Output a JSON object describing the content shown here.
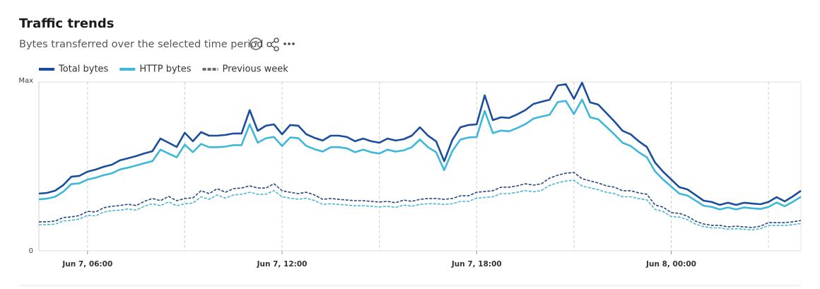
{
  "header": {
    "title": "Traffic trends",
    "subtitle": "Bytes transferred over the selected time period"
  },
  "chart_data": {
    "type": "line",
    "x": [
      4.5,
      4.75,
      5,
      5.25,
      5.5,
      5.75,
      6,
      6.25,
      6.5,
      6.75,
      7,
      7.25,
      7.5,
      7.75,
      8,
      8.25,
      8.5,
      8.75,
      9,
      9.25,
      9.5,
      9.75,
      10,
      10.25,
      10.5,
      10.75,
      11,
      11.25,
      11.5,
      11.75,
      12,
      12.25,
      12.5,
      12.75,
      13,
      13.25,
      13.5,
      13.75,
      14,
      14.25,
      14.5,
      14.75,
      15,
      15.25,
      15.5,
      15.75,
      16,
      16.25,
      16.5,
      16.75,
      17,
      17.25,
      17.5,
      17.75,
      18,
      18.25,
      18.5,
      18.75,
      19,
      19.25,
      19.5,
      19.75,
      20,
      20.25,
      20.5,
      20.75,
      21,
      21.25,
      21.5,
      21.75,
      22,
      22.25,
      22.5,
      22.75,
      23,
      23.25,
      23.5,
      23.75,
      24,
      24.25,
      24.5,
      24.75,
      25,
      25.25,
      25.5,
      25.75,
      26,
      26.25,
      26.5,
      26.75,
      27,
      27.25,
      27.5,
      27.75,
      28
    ],
    "xlim": [
      4.5,
      28
    ],
    "xticks": [
      {
        "value": 6,
        "label": "Jun 7, 06:00"
      },
      {
        "value": 12,
        "label": "Jun 7, 12:00"
      },
      {
        "value": 18,
        "label": "Jun 7, 18:00"
      },
      {
        "value": 24,
        "label": "Jun 8, 00:00"
      }
    ],
    "xgrid": [
      9,
      15,
      21,
      27
    ],
    "ylim": [
      0,
      100
    ],
    "yticks": [
      0,
      {
        "value": 100,
        "label": "Max"
      }
    ],
    "series": [
      {
        "name": "Total bytes",
        "color": "#1a4d9c",
        "values": [
          33.9,
          34.3,
          35.6,
          38.9,
          43.9,
          44.4,
          46.9,
          48.1,
          49.8,
          51.0,
          53.6,
          54.8,
          56.1,
          57.7,
          59.0,
          66.5,
          64.0,
          61.5,
          69.9,
          64.9,
          70.3,
          68.2,
          68.2,
          68.6,
          69.5,
          69.5,
          83.3,
          71.1,
          74.1,
          74.9,
          69.0,
          74.5,
          74.1,
          69.0,
          66.9,
          65.3,
          68.2,
          68.2,
          67.4,
          64.9,
          66.5,
          64.9,
          64.0,
          66.5,
          65.3,
          66.1,
          68.2,
          73.2,
          68.2,
          64.9,
          53.1,
          65.7,
          73.2,
          74.5,
          74.9,
          92.1,
          77.4,
          79.1,
          78.7,
          80.8,
          83.3,
          87.0,
          88.3,
          89.5,
          97.9,
          98.7,
          90.0,
          99.6,
          87.9,
          86.6,
          81.6,
          76.6,
          71.1,
          69.0,
          64.9,
          61.5,
          52.3,
          46.9,
          42.3,
          37.7,
          36.4,
          33.1,
          29.7,
          28.9,
          27.2,
          28.5,
          27.2,
          28.5,
          28.0,
          27.6,
          28.9,
          31.8,
          29.3,
          32.2,
          35.6
        ]
      },
      {
        "name": "HTTP bytes",
        "color": "#3db7db",
        "values": [
          30.5,
          30.9,
          32.0,
          35.0,
          39.5,
          40.0,
          42.2,
          43.3,
          44.8,
          45.9,
          48.2,
          49.3,
          50.5,
          51.9,
          53.1,
          59.9,
          57.6,
          55.4,
          62.9,
          58.4,
          63.3,
          61.4,
          61.4,
          61.7,
          62.6,
          62.6,
          75.0,
          64.0,
          66.7,
          67.4,
          62.1,
          67.1,
          66.7,
          62.1,
          60.2,
          58.8,
          61.4,
          61.4,
          60.7,
          58.4,
          59.9,
          58.4,
          57.6,
          59.9,
          58.8,
          59.5,
          61.4,
          65.9,
          61.4,
          58.4,
          47.8,
          59.1,
          65.9,
          67.1,
          67.4,
          82.9,
          69.7,
          71.2,
          70.8,
          72.7,
          75.0,
          78.3,
          79.5,
          80.6,
          88.1,
          88.8,
          81.0,
          89.6,
          79.1,
          77.9,
          73.4,
          68.9,
          64.0,
          62.1,
          58.4,
          55.4,
          47.1,
          42.2,
          38.1,
          33.9,
          32.8,
          29.8,
          26.7,
          26.0,
          24.5,
          25.7,
          24.5,
          25.7,
          25.2,
          24.8,
          26.0,
          28.6,
          26.4,
          29.0,
          32.0
        ]
      },
      {
        "name": "Previous week",
        "color": "#6b6b6b",
        "dashed": true,
        "lines": [
          {
            "color": "#24477d",
            "values": [
              17.2,
              17.2,
              17.6,
              19.7,
              20.1,
              20.9,
              23.4,
              23.0,
              25.5,
              26.4,
              26.8,
              27.6,
              26.8,
              29.3,
              31.0,
              29.7,
              32.2,
              29.7,
              31.0,
              31.4,
              35.6,
              33.9,
              36.8,
              34.7,
              36.8,
              37.2,
              38.5,
              37.2,
              37.2,
              39.7,
              35.6,
              34.7,
              33.9,
              34.7,
              33.1,
              30.5,
              31.0,
              30.5,
              30.1,
              29.7,
              29.7,
              29.3,
              28.9,
              29.3,
              28.5,
              30.1,
              29.3,
              30.5,
              31.0,
              31.0,
              30.5,
              31.0,
              32.6,
              32.6,
              34.7,
              35.1,
              35.6,
              37.7,
              37.7,
              38.5,
              39.7,
              38.9,
              39.7,
              43.1,
              44.8,
              46.0,
              46.4,
              42.7,
              41.4,
              40.2,
              38.5,
              37.7,
              35.6,
              35.6,
              34.3,
              33.5,
              27.2,
              25.9,
              22.6,
              22.2,
              20.5,
              17.6,
              15.9,
              15.1,
              15.1,
              14.2,
              14.6,
              14.2,
              13.8,
              14.6,
              16.7,
              16.7,
              16.7,
              17.2,
              18.0
            ]
          },
          {
            "color": "#4ab6d6",
            "values": [
              15.5,
              15.5,
              15.8,
              17.7,
              18.1,
              18.8,
              21.1,
              20.7,
              23.0,
              23.8,
              24.1,
              24.8,
              24.1,
              26.4,
              27.9,
              26.7,
              29.0,
              26.7,
              27.9,
              28.3,
              32.0,
              30.5,
              33.1,
              31.2,
              33.1,
              33.5,
              34.7,
              33.5,
              33.5,
              35.7,
              32.0,
              31.2,
              30.5,
              31.2,
              29.8,
              27.5,
              27.9,
              27.5,
              27.1,
              26.7,
              26.7,
              26.4,
              26.0,
              26.4,
              25.7,
              27.1,
              26.4,
              27.5,
              27.9,
              27.9,
              27.5,
              27.9,
              29.3,
              29.3,
              31.2,
              31.6,
              32.0,
              33.9,
              33.9,
              34.7,
              35.7,
              35.0,
              35.7,
              38.8,
              40.3,
              41.4,
              41.8,
              38.4,
              37.3,
              36.2,
              34.7,
              33.9,
              32.0,
              32.0,
              30.9,
              30.2,
              24.5,
              23.3,
              20.3,
              20.0,
              18.5,
              15.8,
              14.3,
              13.6,
              13.6,
              12.8,
              13.1,
              12.8,
              12.4,
              13.1,
              15.0,
              15.0,
              15.0,
              15.5,
              16.2
            ]
          }
        ]
      }
    ]
  }
}
